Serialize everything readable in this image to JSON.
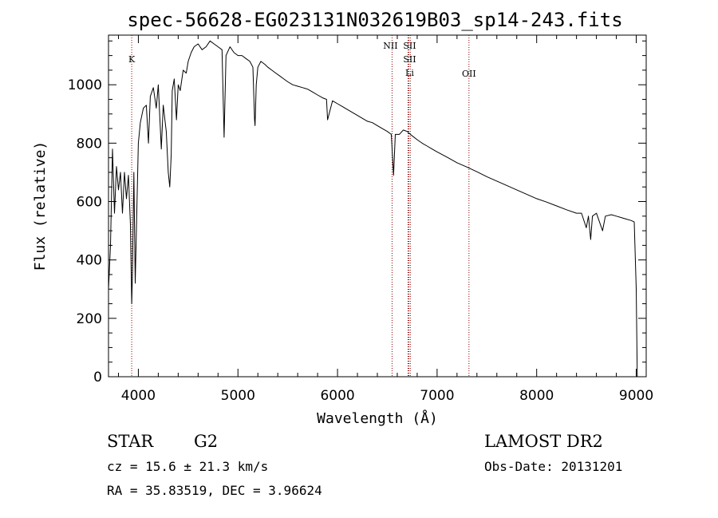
{
  "chart_data": {
    "type": "line",
    "title": "spec-56628-EG023131N032619B03_sp14-243.fits",
    "xlabel": "Wavelength (Å)",
    "ylabel": "Flux (relative)",
    "xlim": [
      3700,
      9100
    ],
    "ylim": [
      0,
      1170
    ],
    "x_ticks": [
      4000,
      5000,
      6000,
      7000,
      8000,
      9000
    ],
    "y_ticks": [
      0,
      200,
      400,
      600,
      800,
      1000
    ],
    "grid": false,
    "series": [
      {
        "color": "#000000",
        "x": [
          3700,
          3720,
          3740,
          3760,
          3780,
          3800,
          3820,
          3840,
          3860,
          3880,
          3900,
          3920,
          3933,
          3940,
          3955,
          3968,
          3975,
          4000,
          4020,
          4050,
          4080,
          4101,
          4120,
          4150,
          4180,
          4200,
          4230,
          4250,
          4280,
          4300,
          4315,
          4330,
          4340,
          4360,
          4383,
          4400,
          4420,
          4450,
          4480,
          4500,
          4530,
          4560,
          4600,
          4640,
          4680,
          4720,
          4760,
          4800,
          4840,
          4861,
          4880,
          4920,
          4960,
          5000,
          5040,
          5080,
          5120,
          5150,
          5167,
          5172,
          5184,
          5200,
          5230,
          5270,
          5300,
          5340,
          5380,
          5420,
          5460,
          5500,
          5550,
          5600,
          5650,
          5700,
          5750,
          5800,
          5850,
          5890,
          5900,
          5950,
          6000,
          6050,
          6100,
          6150,
          6200,
          6250,
          6300,
          6350,
          6400,
          6450,
          6500,
          6540,
          6563,
          6580,
          6620,
          6660,
          6700,
          6750,
          6800,
          6850,
          6900,
          6950,
          7000,
          7100,
          7200,
          7300,
          7400,
          7500,
          7600,
          7700,
          7800,
          7900,
          8000,
          8100,
          8200,
          8300,
          8400,
          8450,
          8498,
          8520,
          8542,
          8560,
          8600,
          8662,
          8690,
          8750,
          8800,
          8850,
          8900,
          8950,
          8980,
          9000,
          9010
        ],
        "values": [
          300,
          450,
          780,
          560,
          720,
          640,
          700,
          560,
          700,
          610,
          690,
          520,
          250,
          350,
          700,
          320,
          420,
          800,
          870,
          920,
          930,
          800,
          960,
          990,
          920,
          1000,
          780,
          930,
          840,
          700,
          650,
          760,
          980,
          1020,
          880,
          1000,
          980,
          1050,
          1040,
          1080,
          1110,
          1130,
          1140,
          1120,
          1130,
          1150,
          1140,
          1130,
          1120,
          820,
          1100,
          1130,
          1110,
          1100,
          1100,
          1090,
          1080,
          1060,
          880,
          860,
          1000,
          1060,
          1080,
          1070,
          1060,
          1050,
          1040,
          1030,
          1020,
          1010,
          1000,
          995,
          990,
          985,
          975,
          965,
          955,
          950,
          880,
          945,
          935,
          925,
          915,
          905,
          895,
          885,
          875,
          870,
          860,
          850,
          840,
          830,
          690,
          830,
          830,
          845,
          840,
          825,
          812,
          800,
          790,
          780,
          770,
          752,
          733,
          718,
          702,
          685,
          670,
          655,
          640,
          625,
          610,
          598,
          585,
          572,
          560,
          560,
          510,
          550,
          470,
          550,
          560,
          500,
          550,
          555,
          550,
          545,
          540,
          535,
          530,
          300,
          0
        ]
      }
    ],
    "lines": [
      {
        "label": "K",
        "x": 3933
      },
      {
        "label": "NII",
        "x": 6548
      },
      {
        "label": "SII",
        "x": 6717
      },
      {
        "label": "SII",
        "x": 6731
      },
      {
        "label": "Li",
        "x": 6708
      },
      {
        "label": "OII",
        "x": 7320
      }
    ]
  },
  "info": {
    "class_label": "STAR",
    "subclass_label": "G2",
    "survey": "LAMOST DR2",
    "cz": "cz = 15.6 ± 21.3 km/s",
    "obs_date": "Obs-Date: 20131201",
    "coords": "RA =  35.83519, DEC =   3.96624"
  },
  "colors": {
    "spectrum": "#000000",
    "line_marker": "#8b0000",
    "background": "#ffffff"
  }
}
